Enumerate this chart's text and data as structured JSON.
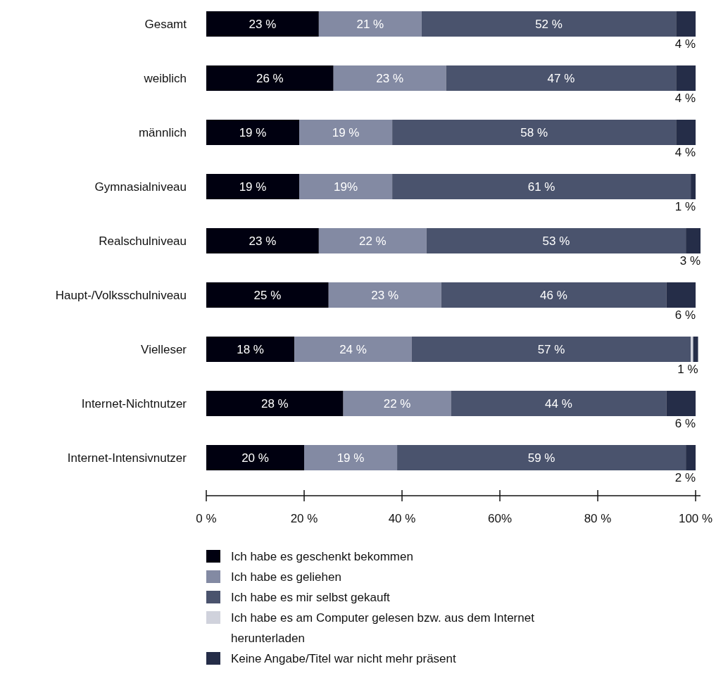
{
  "chart_data": {
    "type": "bar",
    "orientation": "horizontal",
    "stacked": true,
    "categories": [
      "Gesamt",
      "weiblich",
      "männlich",
      "Gymnasialniveau",
      "Realschulniveau",
      "Haupt-/Volksschulniveau",
      "Vielleser",
      "Internet-Nichtnutzer",
      "Internet-Intensivnutzer"
    ],
    "series": [
      {
        "name": "Ich habe es geschenkt bekommen",
        "color": "#000010",
        "values": [
          23,
          26,
          19,
          19,
          23,
          25,
          18,
          28,
          20
        ],
        "value_labels": [
          "23 %",
          "26 %",
          "19 %",
          "19 %",
          "23 %",
          "25 %",
          "18 %",
          "28 %",
          "20 %"
        ]
      },
      {
        "name": "Ich habe es geliehen",
        "color": "#838aa3",
        "values": [
          21,
          23,
          19,
          19,
          22,
          23,
          24,
          22,
          19
        ],
        "value_labels": [
          "21 %",
          "23 %",
          "19 %",
          "19%",
          "22 %",
          "23 %",
          "24 %",
          "22 %",
          "19 %"
        ]
      },
      {
        "name": "Ich habe es mir selbst gekauft",
        "color": "#4a536d",
        "values": [
          52,
          47,
          58,
          61,
          53,
          46,
          57,
          44,
          59
        ],
        "value_labels": [
          "52 %",
          "47 %",
          "58 %",
          "61 %",
          "53 %",
          "46 %",
          "57 %",
          "44 %",
          "59 %"
        ]
      },
      {
        "name": "Ich habe es am Computer gelesen bzw. aus dem Internet herunterladen",
        "color": "#d0d2dc",
        "values": [
          0,
          0,
          0,
          0,
          0,
          0,
          0.5,
          0,
          0
        ],
        "value_labels": [
          null,
          null,
          null,
          null,
          null,
          null,
          null,
          null,
          null
        ]
      },
      {
        "name": "Keine Angabe/Titel war nicht mehr präsent",
        "color": "#252d48",
        "values": [
          4,
          4,
          4,
          1,
          3,
          6,
          1,
          6,
          2
        ],
        "value_labels": [
          "4 %",
          "4 %",
          "4 %",
          "1 %",
          "3 %",
          "6 %",
          "1 %",
          "6 %",
          "2 %"
        ]
      }
    ],
    "xlim": [
      0,
      101
    ],
    "xticks": [
      {
        "value": 0,
        "label": "0 %"
      },
      {
        "value": 20,
        "label": "20 %"
      },
      {
        "value": 40,
        "label": "40 %"
      },
      {
        "value": 60,
        "label": "60%"
      },
      {
        "value": 80,
        "label": "80 %"
      },
      {
        "value": 100,
        "label": "100 %"
      }
    ],
    "grid": false,
    "legend": "bottom"
  }
}
